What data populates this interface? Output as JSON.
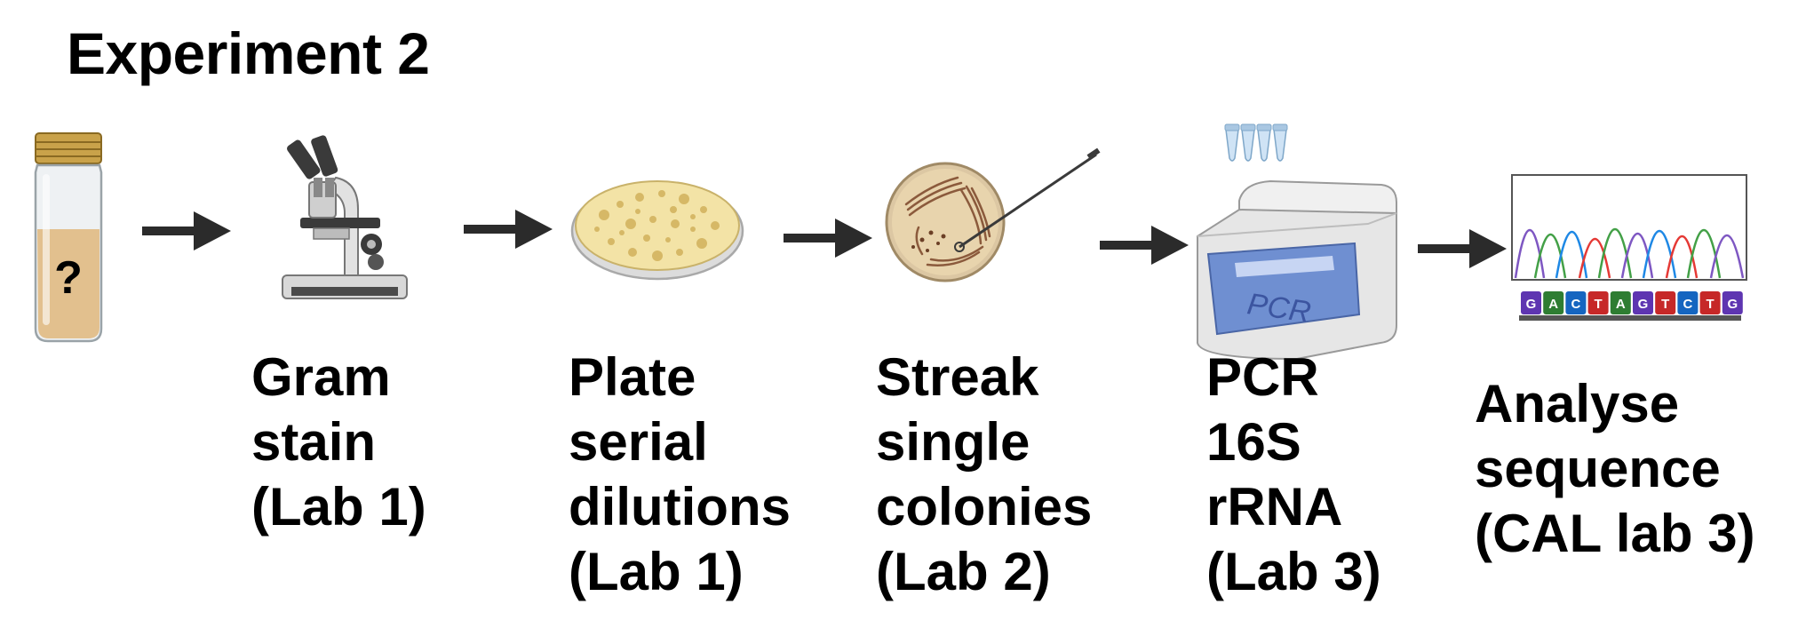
{
  "title": "Experiment 2",
  "vial": {
    "mark": "?"
  },
  "pcr_device": {
    "screen_text": "PCR"
  },
  "sequence": {
    "bases": [
      "G",
      "A",
      "C",
      "T",
      "A",
      "G",
      "T",
      "C",
      "T",
      "G"
    ]
  },
  "steps": [
    {
      "icon": "microscope-icon",
      "lines": [
        "Gram",
        "stain",
        "(Lab 1)"
      ]
    },
    {
      "icon": "petri-dish-icon",
      "lines": [
        "Plate",
        "serial",
        "dilutions",
        "(Lab 1)"
      ]
    },
    {
      "icon": "streak-plate-icon",
      "lines": [
        "Streak",
        "single",
        "colonies",
        "(Lab 2)"
      ]
    },
    {
      "icon": "pcr-machine-icon",
      "lines": [
        "PCR",
        "16S",
        "rRNA",
        "(Lab 3)"
      ]
    },
    {
      "icon": "chromatogram-icon",
      "lines": [
        "Analyse",
        "sequence",
        "(CAL lab 3)"
      ]
    }
  ],
  "colors": {
    "text": "#000000",
    "arrow": "#2b2b2b",
    "vial_liquid": "#e2c08e",
    "vial_cap": "#c9a24a",
    "agar": "#f3e3a6",
    "pcr_screen": "#6f8fd1",
    "pcr_body": "#e6e6e6"
  }
}
